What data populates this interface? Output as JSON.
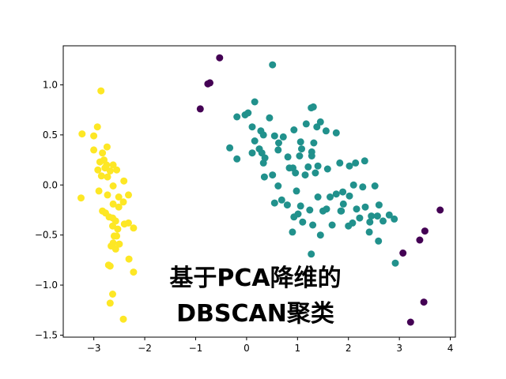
{
  "chart_data": {
    "type": "scatter",
    "title_lines": [
      "基于PCA降维的",
      "DBSCAN聚类"
    ],
    "xlabel": "",
    "ylabel": "",
    "xlim": [
      -3.6,
      4.1
    ],
    "ylim": [
      -1.52,
      1.39
    ],
    "xticks": [
      -3,
      -2,
      -1,
      0,
      1,
      2,
      3,
      4
    ],
    "yticks": [
      -1.5,
      -1.0,
      -0.5,
      0.0,
      0.5,
      1.0
    ],
    "ytick_labels": [
      "−1.5",
      "−1.0",
      "−0.5",
      "0.0",
      "0.5",
      "1.0"
    ],
    "xtick_labels": [
      "−3",
      "−2",
      "−1",
      "0",
      "1",
      "2",
      "3",
      "4"
    ],
    "grid": false,
    "colors": {
      "noise": "#440154",
      "cluster_1": "#21918c",
      "cluster_2": "#fde725"
    },
    "series": [
      {
        "color_key": "noise",
        "points": [
          [
            -0.53,
            1.27
          ],
          [
            -0.76,
            1.01
          ],
          [
            -0.72,
            1.02
          ],
          [
            -0.91,
            0.76
          ],
          [
            3.8,
            -0.25
          ],
          [
            3.5,
            -0.46
          ],
          [
            3.4,
            -0.55
          ],
          [
            3.07,
            -0.68
          ],
          [
            3.48,
            -1.17
          ],
          [
            3.22,
            -1.37
          ]
        ]
      },
      {
        "color_key": "cluster_1",
        "points": [
          [
            0.51,
            1.2
          ],
          [
            0.16,
            0.83
          ],
          [
            1.27,
            0.77
          ],
          [
            1.31,
            0.78
          ],
          [
            1.17,
            0.61
          ],
          [
            0.45,
            0.67
          ],
          [
            -0.19,
            0.68
          ],
          [
            -0.03,
            0.7
          ],
          [
            0.03,
            0.72
          ],
          [
            1.45,
            0.63
          ],
          [
            0.11,
            0.58
          ],
          [
            0.93,
            0.55
          ],
          [
            1.38,
            0.58
          ],
          [
            1.56,
            0.54
          ],
          [
            1.76,
            0.52
          ],
          [
            0.28,
            0.54
          ],
          [
            0.33,
            0.5
          ],
          [
            0.55,
            0.49
          ],
          [
            0.63,
            0.42
          ],
          [
            1.06,
            0.43
          ],
          [
            1.32,
            0.42
          ],
          [
            0.16,
            0.44
          ],
          [
            -0.33,
            0.37
          ],
          [
            0.25,
            0.36
          ],
          [
            0.62,
            0.35
          ],
          [
            1.08,
            0.36
          ],
          [
            0.3,
            0.32
          ],
          [
            0.11,
            0.32
          ],
          [
            1.28,
            0.33
          ],
          [
            0.36,
            0.27
          ],
          [
            -0.19,
            0.26
          ],
          [
            0.81,
            0.28
          ],
          [
            1.04,
            0.29
          ],
          [
            1.28,
            0.29
          ],
          [
            0.33,
            0.22
          ],
          [
            1.83,
            0.22
          ],
          [
            2.02,
            0.19
          ],
          [
            0.84,
            0.17
          ],
          [
            0.91,
            0.17
          ],
          [
            1.21,
            0.18
          ],
          [
            1.4,
            0.19
          ],
          [
            1.59,
            0.16
          ],
          [
            2.14,
            0.22
          ],
          [
            2.32,
            0.24
          ],
          [
            0.96,
            0.12
          ],
          [
            1.15,
            0.1
          ],
          [
            1.35,
            0.12
          ],
          [
            0.51,
            0.1
          ],
          [
            0.35,
            0.08
          ],
          [
            2.1,
            0.0
          ],
          [
            0.62,
            -0.01
          ],
          [
            0.98,
            -0.06
          ],
          [
            2.28,
            -0.02
          ],
          [
            2.52,
            -0.01
          ],
          [
            1.89,
            -0.07
          ],
          [
            2.02,
            -0.11
          ],
          [
            0.69,
            -0.15
          ],
          [
            0.8,
            -0.2
          ],
          [
            1.4,
            -0.12
          ],
          [
            1.64,
            -0.12
          ],
          [
            1.76,
            -0.09
          ],
          [
            1.06,
            -0.21
          ],
          [
            1.9,
            -0.19
          ],
          [
            2.16,
            -0.24
          ],
          [
            1.01,
            -0.29
          ],
          [
            0.93,
            -0.32
          ],
          [
            1.24,
            -0.25
          ],
          [
            1.5,
            -0.26
          ],
          [
            1.57,
            -0.24
          ],
          [
            1.85,
            -0.26
          ],
          [
            2.33,
            -0.22
          ],
          [
            2.22,
            -0.33
          ],
          [
            2.45,
            -0.31
          ],
          [
            2.57,
            -0.31
          ],
          [
            2.8,
            -0.3
          ],
          [
            2.68,
            -0.36
          ],
          [
            2.9,
            -0.34
          ],
          [
            2.42,
            -0.37
          ],
          [
            1.1,
            -0.37
          ],
          [
            1.3,
            -0.4
          ],
          [
            1.68,
            -0.4
          ],
          [
            2.0,
            -0.41
          ],
          [
            2.08,
            -0.38
          ],
          [
            0.9,
            -0.47
          ],
          [
            1.45,
            -0.5
          ],
          [
            2.41,
            -0.47
          ],
          [
            2.59,
            -0.56
          ],
          [
            1.27,
            -0.69
          ],
          [
            2.92,
            -0.78
          ],
          [
            1.86,
            -0.26
          ],
          [
            0.55,
            -0.18
          ],
          [
            2.6,
            -0.2
          ],
          [
            0.72,
            0.48
          ]
        ]
      },
      {
        "color_key": "cluster_2",
        "points": [
          [
            -2.86,
            0.94
          ],
          [
            -2.93,
            0.58
          ],
          [
            -3.23,
            0.51
          ],
          [
            -3.0,
            0.49
          ],
          [
            -2.74,
            0.38
          ],
          [
            -3.0,
            0.35
          ],
          [
            -2.83,
            0.32
          ],
          [
            -2.88,
            0.23
          ],
          [
            -2.8,
            0.25
          ],
          [
            -2.75,
            0.2
          ],
          [
            -2.62,
            0.2
          ],
          [
            -2.78,
            0.17
          ],
          [
            -2.92,
            0.15
          ],
          [
            -2.68,
            0.14
          ],
          [
            -2.55,
            0.15
          ],
          [
            -2.85,
            0.09
          ],
          [
            -2.73,
            0.08
          ],
          [
            -2.41,
            0.04
          ],
          [
            -2.62,
            -0.01
          ],
          [
            -2.9,
            -0.06
          ],
          [
            -2.73,
            -0.1
          ],
          [
            -2.51,
            -0.12
          ],
          [
            -2.32,
            -0.1
          ],
          [
            -2.42,
            -0.17
          ],
          [
            -3.25,
            -0.13
          ],
          [
            -2.62,
            -0.19
          ],
          [
            -2.51,
            -0.22
          ],
          [
            -2.83,
            -0.26
          ],
          [
            -2.77,
            -0.28
          ],
          [
            -2.7,
            -0.32
          ],
          [
            -2.63,
            -0.33
          ],
          [
            -2.57,
            -0.36
          ],
          [
            -2.53,
            -0.44
          ],
          [
            -2.4,
            -0.39
          ],
          [
            -2.32,
            -0.38
          ],
          [
            -2.63,
            -0.41
          ],
          [
            -2.22,
            -0.43
          ],
          [
            -2.55,
            -0.51
          ],
          [
            -2.6,
            -0.51
          ],
          [
            -2.62,
            -0.58
          ],
          [
            -2.5,
            -0.59
          ],
          [
            -2.66,
            -0.61
          ],
          [
            -2.57,
            -0.64
          ],
          [
            -2.31,
            -0.74
          ],
          [
            -2.68,
            -0.81
          ],
          [
            -2.71,
            -0.8
          ],
          [
            -2.22,
            -0.87
          ],
          [
            -2.63,
            -1.09
          ],
          [
            -2.68,
            -1.18
          ],
          [
            -2.42,
            -1.34
          ]
        ]
      }
    ]
  }
}
